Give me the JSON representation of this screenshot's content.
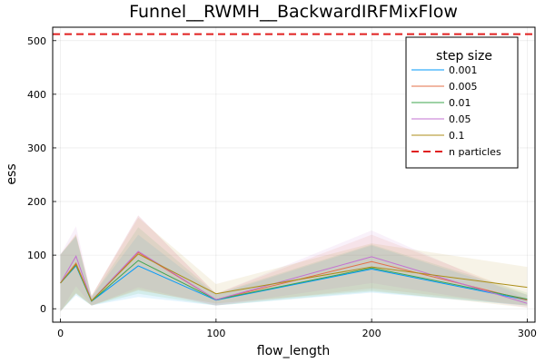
{
  "chart_data": {
    "type": "line",
    "title": "Funnel__RWMH__BackwardIRFMixFlow",
    "xlabel": "flow_length",
    "ylabel": "ess",
    "xlim": [
      -5,
      305
    ],
    "ylim": [
      -25,
      525
    ],
    "xticks": [
      0,
      100,
      200,
      300
    ],
    "yticks": [
      0,
      100,
      200,
      300,
      400,
      500
    ],
    "grid": true,
    "legend_position": "top-right",
    "legend_title": "step size",
    "x": [
      0,
      10,
      20,
      50,
      100,
      200,
      300
    ],
    "series": [
      {
        "name": "0.001",
        "color": "#009AFA",
        "values": [
          48,
          80,
          14,
          80,
          16,
          74,
          16
        ],
        "lower": [
          -5,
          25,
          6,
          22,
          6,
          30,
          6
        ],
        "upper": [
          101,
          135,
          22,
          138,
          26,
          118,
          26
        ]
      },
      {
        "name": "0.005",
        "color": "#E36F47",
        "values": [
          48,
          85,
          15,
          105,
          17,
          88,
          16
        ],
        "lower": [
          -5,
          30,
          6,
          36,
          6,
          38,
          6
        ],
        "upper": [
          101,
          140,
          24,
          174,
          28,
          138,
          26
        ]
      },
      {
        "name": "0.01",
        "color": "#3EA44E",
        "values": [
          48,
          82,
          14,
          90,
          17,
          76,
          18
        ],
        "lower": [
          -5,
          28,
          6,
          28,
          6,
          32,
          6
        ],
        "upper": [
          101,
          136,
          22,
          152,
          28,
          120,
          30
        ]
      },
      {
        "name": "0.05",
        "color": "#C371D2",
        "values": [
          48,
          98,
          15,
          107,
          17,
          97,
          10
        ],
        "lower": [
          -5,
          42,
          6,
          40,
          6,
          48,
          2
        ],
        "upper": [
          101,
          154,
          24,
          174,
          28,
          146,
          18
        ]
      },
      {
        "name": "0.1",
        "color": "#AC8E18",
        "values": [
          48,
          83,
          15,
          102,
          28,
          78,
          40
        ],
        "lower": [
          -5,
          28,
          6,
          34,
          10,
          34,
          2
        ],
        "upper": [
          101,
          138,
          24,
          170,
          46,
          122,
          78
        ]
      }
    ],
    "reference_line": {
      "name": "n particles",
      "color": "#E02020",
      "value": 512,
      "style": "dashed"
    }
  }
}
